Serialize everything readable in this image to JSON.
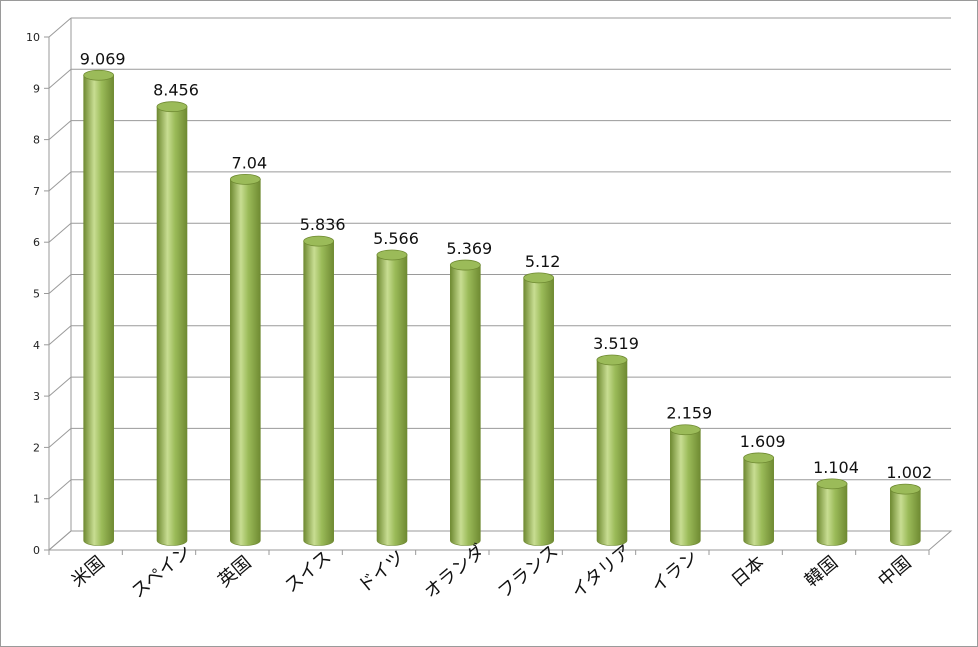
{
  "chart_data": {
    "type": "bar",
    "style": "3d-cylinder",
    "categories": [
      "米国",
      "スペイン",
      "英国",
      "スイス",
      "ドイツ",
      "オランダ",
      "フランス",
      "イタリア",
      "イラン",
      "日本",
      "韓国",
      "中国"
    ],
    "values": [
      9.069,
      8.456,
      7.04,
      5.836,
      5.566,
      5.369,
      5.12,
      3.519,
      2.159,
      1.609,
      1.104,
      1.002
    ],
    "value_labels": [
      "9.069",
      "8.456",
      "7.04",
      "5.836",
      "5.566",
      "5.369",
      "5.12",
      "3.519",
      "2.159",
      "1.609",
      "1.104",
      "1.002"
    ],
    "yticks": [
      "0",
      "1",
      "2",
      "3",
      "4",
      "5",
      "6",
      "7",
      "8",
      "9",
      "10"
    ],
    "ylim": [
      0,
      10
    ],
    "grid": true,
    "legend": "none",
    "bar_color": "#9bbb59",
    "bar_color_dark": "#6f8a32",
    "bar_color_light": "#c8dd92"
  }
}
